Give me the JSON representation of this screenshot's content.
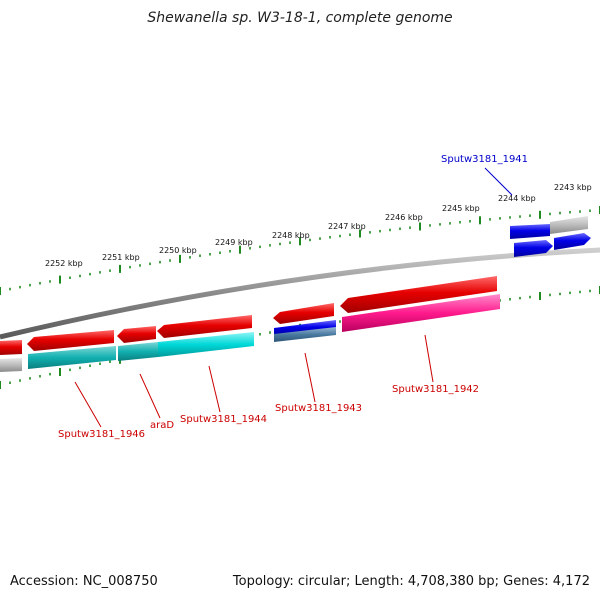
{
  "title": "Shewanella sp. W3-18-1, complete genome",
  "footer": {
    "accession": "Accession: NC_008750",
    "summary": "Topology: circular; Length: 4,708,380 bp; Genes: 4,172"
  },
  "scale_labels": [
    "2252 kbp",
    "2251 kbp",
    "2250 kbp",
    "2249 kbp",
    "2248 kbp",
    "2247 kbp",
    "2246 kbp",
    "2245 kbp",
    "2244 kbp",
    "2243 kbp"
  ],
  "gene_labels": [
    {
      "text": "Sputw3181_1941",
      "color": "#0000cc"
    },
    {
      "text": "Sputw3181_1942",
      "color": "#cc0000"
    },
    {
      "text": "Sputw3181_1943",
      "color": "#cc0000"
    },
    {
      "text": "Sputw3181_1944",
      "color": "#cc0000"
    },
    {
      "text": "araD",
      "color": "#cc0000"
    },
    {
      "text": "Sputw3181_1946",
      "color": "#cc0000"
    }
  ],
  "colors": {
    "backbone": "#888888",
    "cds_forward": "#e60000",
    "cds_reverse": "#e60000",
    "cds_blue": "#0000e6",
    "cyan": "#00d8d8",
    "magenta": "#ff1a8c",
    "steel": "#4a7aa0",
    "grey": "#bbbbbb",
    "tick": "#1f8a1f"
  }
}
